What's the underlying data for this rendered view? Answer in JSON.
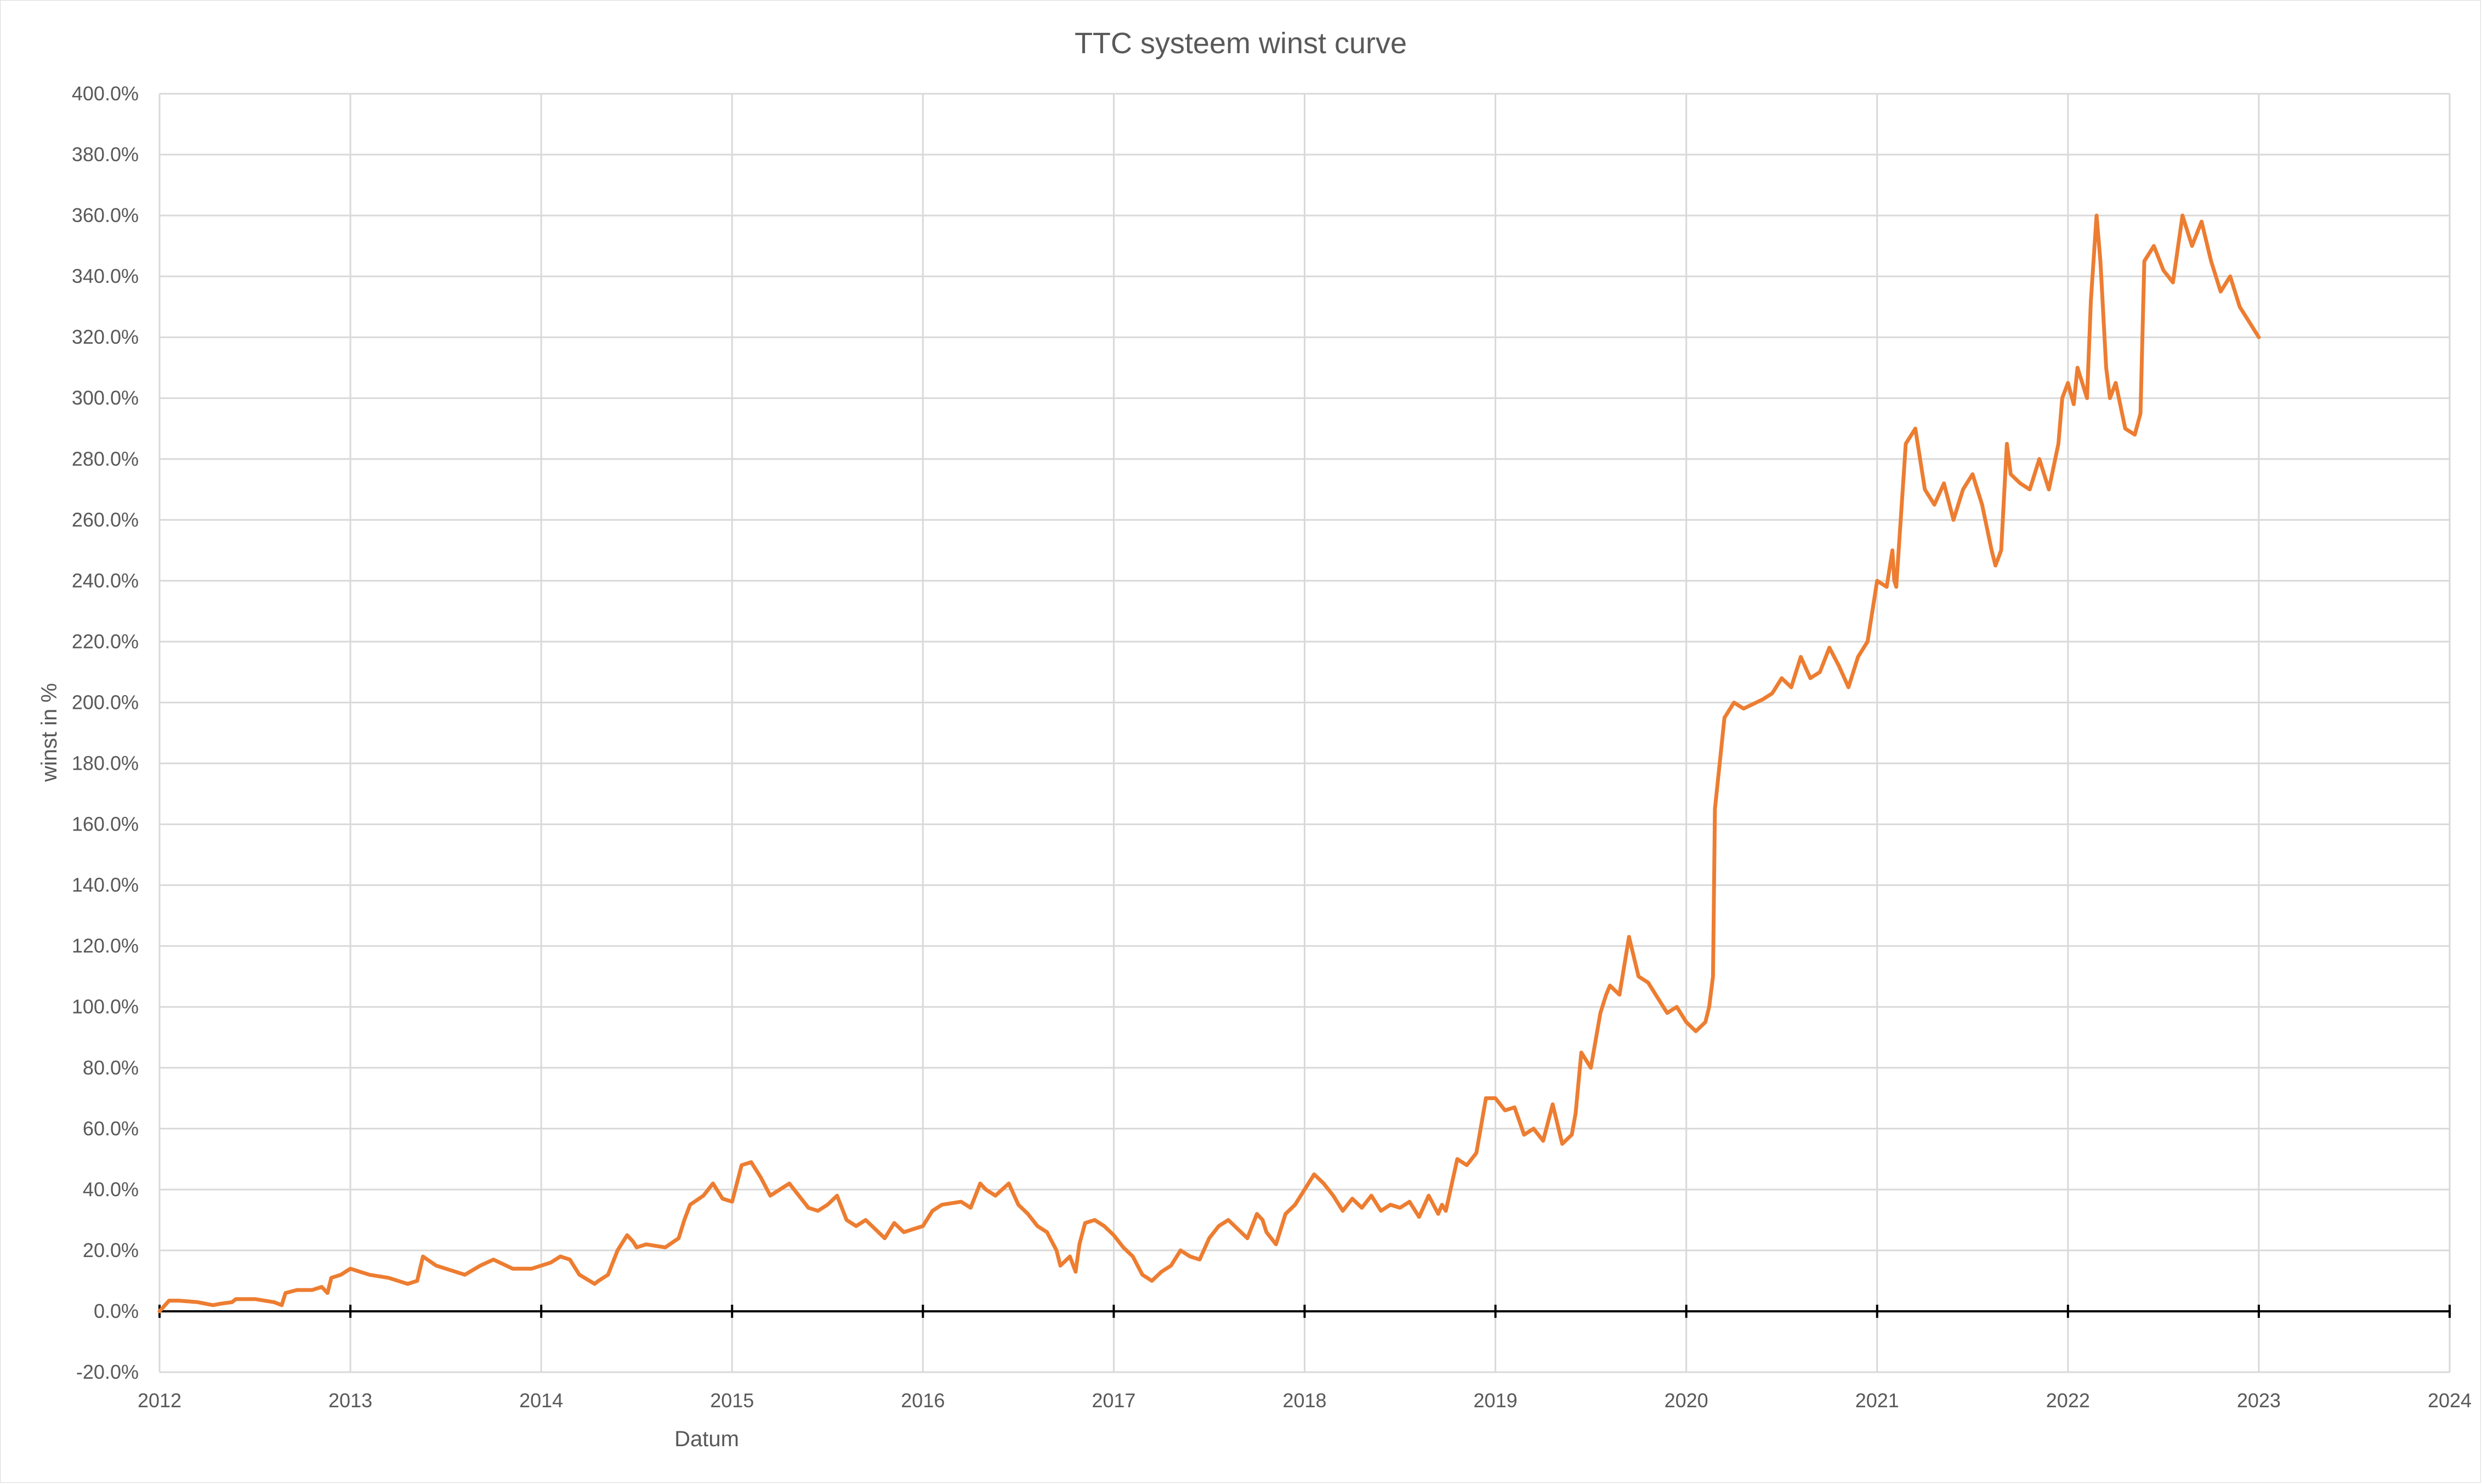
{
  "chart_data": {
    "type": "line",
    "title": "TTC systeem winst curve",
    "xlabel": "Datum",
    "ylabel": "winst in %",
    "x_ticks": [
      "2012",
      "2013",
      "2014",
      "2015",
      "2016",
      "2017",
      "2018",
      "2019",
      "2020",
      "2021",
      "2022",
      "2023",
      "2024"
    ],
    "y_ticks": [
      "-20.0%",
      "0.0%",
      "20.0%",
      "40.0%",
      "60.0%",
      "80.0%",
      "100.0%",
      "120.0%",
      "140.0%",
      "160.0%",
      "180.0%",
      "200.0%",
      "220.0%",
      "240.0%",
      "260.0%",
      "280.0%",
      "300.0%",
      "320.0%",
      "340.0%",
      "360.0%",
      "380.0%",
      "400.0%"
    ],
    "xlim": [
      2012,
      2024
    ],
    "ylim": [
      -20,
      400
    ],
    "grid": true,
    "legend": "none",
    "series": [
      {
        "color": "#ED7D31",
        "x": [
          2012.0,
          2012.05,
          2012.1,
          2012.2,
          2012.28,
          2012.32,
          2012.38,
          2012.4,
          2012.5,
          2012.6,
          2012.64,
          2012.66,
          2012.72,
          2012.8,
          2012.85,
          2012.88,
          2012.9,
          2012.95,
          2013.0,
          2013.05,
          2013.1,
          2013.2,
          2013.25,
          2013.3,
          2013.35,
          2013.38,
          2013.45,
          2013.5,
          2013.6,
          2013.68,
          2013.75,
          2013.85,
          2013.95,
          2014.05,
          2014.1,
          2014.15,
          2014.2,
          2014.28,
          2014.3,
          2014.35,
          2014.4,
          2014.45,
          2014.48,
          2014.5,
          2014.55,
          2014.65,
          2014.72,
          2014.75,
          2014.78,
          2014.85,
          2014.9,
          2014.95,
          2015.0,
          2015.05,
          2015.1,
          2015.15,
          2015.2,
          2015.3,
          2015.35,
          2015.4,
          2015.45,
          2015.5,
          2015.55,
          2015.6,
          2015.65,
          2015.7,
          2015.75,
          2015.8,
          2015.85,
          2015.9,
          2015.95,
          2016.0,
          2016.05,
          2016.1,
          2016.2,
          2016.25,
          2016.3,
          2016.33,
          2016.38,
          2016.45,
          2016.5,
          2016.55,
          2016.6,
          2016.65,
          2016.7,
          2016.72,
          2016.77,
          2016.8,
          2016.82,
          2016.85,
          2016.9,
          2016.95,
          2017.0,
          2017.05,
          2017.1,
          2017.15,
          2017.2,
          2017.25,
          2017.3,
          2017.35,
          2017.4,
          2017.45,
          2017.5,
          2017.55,
          2017.6,
          2017.65,
          2017.7,
          2017.75,
          2017.78,
          2017.8,
          2017.85,
          2017.9,
          2017.95,
          2018.0,
          2018.05,
          2018.1,
          2018.15,
          2018.2,
          2018.25,
          2018.3,
          2018.35,
          2018.4,
          2018.45,
          2018.5,
          2018.55,
          2018.6,
          2018.65,
          2018.7,
          2018.72,
          2018.74,
          2018.8,
          2018.85,
          2018.9,
          2018.95,
          2019.0,
          2019.05,
          2019.1,
          2019.15,
          2019.2,
          2019.25,
          2019.3,
          2019.35,
          2019.4,
          2019.42,
          2019.45,
          2019.5,
          2019.55,
          2019.58,
          2019.6,
          2019.65,
          2019.7,
          2019.75,
          2019.8,
          2019.85,
          2019.9,
          2019.95,
          2020.0,
          2020.05,
          2020.1,
          2020.12,
          2020.13,
          2020.14,
          2020.15,
          2020.2,
          2020.25,
          2020.3,
          2020.4,
          2020.45,
          2020.5,
          2020.55,
          2020.6,
          2020.65,
          2020.7,
          2020.75,
          2020.8,
          2020.85,
          2020.9,
          2020.95,
          2021.0,
          2021.05,
          2021.08,
          2021.09,
          2021.1,
          2021.15,
          2021.2,
          2021.25,
          2021.3,
          2021.35,
          2021.4,
          2021.45,
          2021.5,
          2021.55,
          2021.6,
          2021.62,
          2021.65,
          2021.68,
          2021.7,
          2021.75,
          2021.8,
          2021.85,
          2021.9,
          2021.95,
          2021.97,
          2022.0,
          2022.03,
          2022.05,
          2022.1,
          2022.12,
          2022.15,
          2022.17,
          2022.2,
          2022.22,
          2022.25,
          2022.3,
          2022.35,
          2022.38,
          2022.4,
          2022.45,
          2022.5,
          2022.55,
          2022.6,
          2022.65,
          2022.7,
          2022.75,
          2022.8,
          2022.85,
          2022.9,
          2022.95,
          2023.0
        ],
        "y": [
          0,
          3.5,
          3.5,
          3,
          2,
          2.5,
          3,
          4,
          4,
          3,
          2,
          6,
          7,
          7,
          8,
          6,
          11,
          12,
          14,
          13,
          12,
          11,
          10,
          9,
          10,
          18,
          15,
          14,
          12,
          15,
          17,
          14,
          14,
          16,
          18,
          17,
          12,
          9,
          10,
          12,
          20,
          25,
          23,
          21,
          22,
          21,
          24,
          30,
          35,
          38,
          42,
          37,
          36,
          48,
          49,
          44,
          38,
          42,
          38,
          34,
          33,
          35,
          38,
          30,
          28,
          30,
          27,
          24,
          29,
          26,
          27,
          28,
          33,
          35,
          36,
          34,
          42,
          40,
          38,
          42,
          35,
          32,
          28,
          26,
          20,
          15,
          18,
          13,
          22,
          29,
          30,
          28,
          25,
          21,
          18,
          12,
          10,
          13,
          15,
          20,
          18,
          17,
          24,
          28,
          30,
          27,
          24,
          32,
          30,
          26,
          22,
          32,
          35,
          40,
          45,
          42,
          38,
          33,
          37,
          34,
          38,
          33,
          35,
          34,
          36,
          31,
          38,
          32,
          35,
          33,
          50,
          48,
          52,
          70,
          70,
          66,
          67,
          58,
          60,
          56,
          68,
          55,
          58,
          65,
          85,
          80,
          98,
          104,
          107,
          104,
          123,
          110,
          108,
          103,
          98,
          100,
          95,
          92,
          95,
          100,
          105,
          110,
          165,
          195,
          200,
          198,
          201,
          203,
          208,
          205,
          215,
          208,
          210,
          218,
          212,
          205,
          215,
          220,
          240,
          238,
          250,
          240,
          238,
          285,
          290,
          270,
          265,
          272,
          260,
          270,
          275,
          265,
          250,
          245,
          250,
          285,
          275,
          272,
          270,
          280,
          270,
          285,
          300,
          305,
          298,
          310,
          300,
          332,
          360,
          345,
          310,
          300,
          305,
          290,
          288,
          295,
          345,
          350,
          342,
          338,
          360,
          350,
          358,
          345,
          335,
          340,
          330,
          325,
          320
        ]
      }
    ]
  }
}
